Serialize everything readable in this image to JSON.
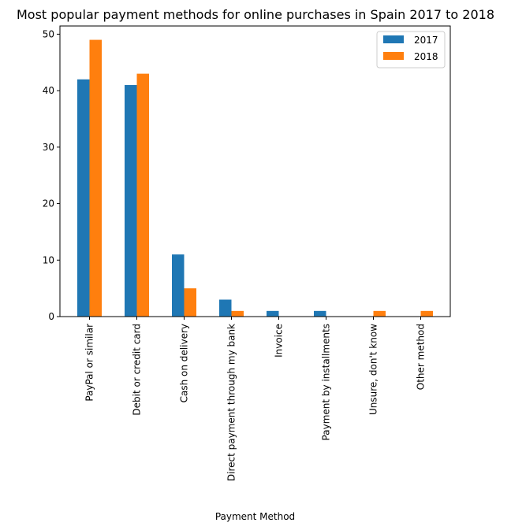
{
  "chart_data": {
    "type": "bar",
    "title": "Most popular payment methods for online purchases in Spain 2017 to 2018",
    "xlabel": "Payment Method",
    "ylabel": "",
    "categories": [
      "PayPal or similar",
      "Debit or credit card",
      "Cash on delivery",
      "Direct payment through my bank",
      "Invoice",
      "Payment by installments",
      "Unsure, don't know",
      "Other method"
    ],
    "series": [
      {
        "name": "2017",
        "color": "#1f77b4",
        "values": [
          42,
          41,
          11,
          3,
          1,
          1,
          0,
          0
        ]
      },
      {
        "name": "2018",
        "color": "#ff7f0e",
        "values": [
          49,
          43,
          5,
          1,
          0,
          0,
          1,
          1
        ]
      }
    ],
    "ylim": [
      0,
      51.45
    ],
    "yticks": [
      0,
      10,
      20,
      30,
      40,
      50
    ],
    "legend_position": "top-right",
    "grid": false
  }
}
